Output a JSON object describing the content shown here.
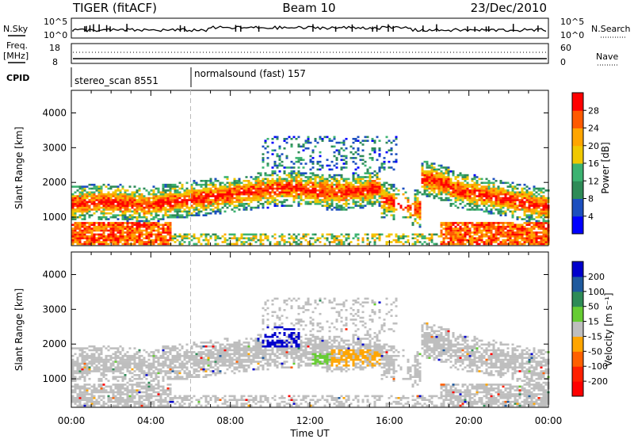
{
  "header": {
    "title": "TIGER (fitACF)",
    "beam": "Beam 10",
    "date": "23/Dec/2010"
  },
  "top_panels": {
    "nsky_label": "N.Sky",
    "nsky_ticks": [
      "10^5",
      "10^0"
    ],
    "nsearch_label": "N.Search",
    "nsearch_ticks": [
      "10^5",
      "10^0"
    ],
    "freq_label": "Freq.",
    "freq_unit": "[MHz]",
    "freq_ticks": [
      "18",
      "8"
    ],
    "nave_label": "Nave",
    "nave_ticks": [
      "60",
      "0"
    ],
    "cpid_label": "CPID",
    "cpid_segments": [
      "stereo_scan 8551",
      "normalsound (fast) 157"
    ]
  },
  "chart_data": [
    {
      "type": "heatmap",
      "name": "power-panel",
      "ylabel": "Slant Range [km]",
      "yticks": [
        1000,
        2000,
        3000,
        4000
      ],
      "ylim": [
        180,
        4650
      ],
      "xlim": [
        0,
        24
      ],
      "colorbar": {
        "label": "Power [dB]",
        "ticks": [
          "4",
          "8",
          "12",
          "16",
          "20",
          "24",
          "28"
        ],
        "range": [
          0,
          32
        ],
        "colors": [
          "#0000ff",
          "#1c4fbf",
          "#2e8b57",
          "#3cb371",
          "#f0c800",
          "#ffa500",
          "#ff5a00",
          "#ff0000"
        ]
      }
    },
    {
      "type": "heatmap",
      "name": "velocity-panel",
      "ylabel": "Slant Range [km]",
      "xlabel": "Time UT",
      "yticks": [
        1000,
        2000,
        3000,
        4000
      ],
      "ylim": [
        180,
        4650
      ],
      "xlim": [
        0,
        24
      ],
      "xticks": [
        "00:00",
        "04:00",
        "08:00",
        "12:00",
        "16:00",
        "20:00",
        "00:00"
      ],
      "colorbar": {
        "label": "Velocity [m s⁻¹]",
        "ticks": [
          "200",
          "100",
          "50",
          "15",
          "-15",
          "-50",
          "-100",
          "-200"
        ],
        "colors": [
          "#0000cc",
          "#1f5a9e",
          "#2e8b57",
          "#66cc33",
          "#bebebe",
          "#ffa500",
          "#ff6000",
          "#ff2000",
          "#ff0000"
        ]
      }
    }
  ]
}
